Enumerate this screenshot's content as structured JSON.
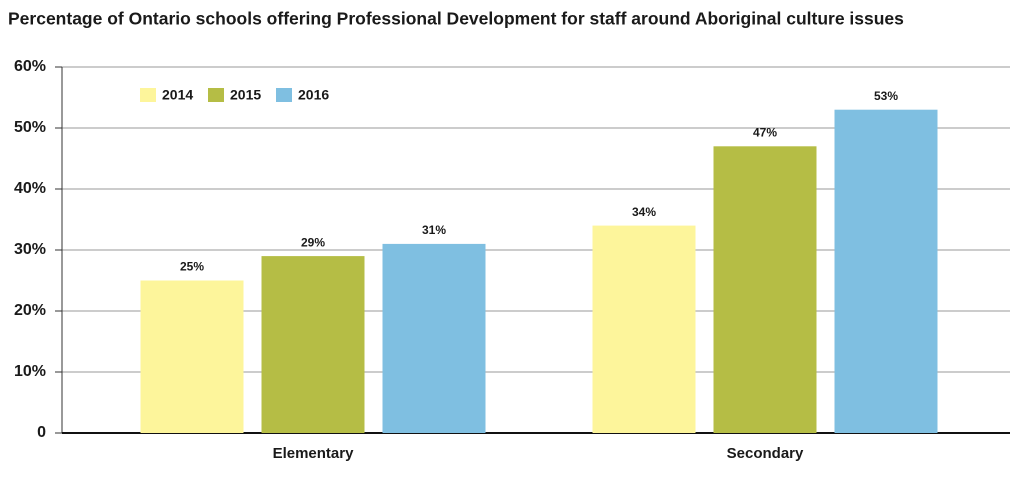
{
  "chart_data": {
    "type": "bar",
    "title": "Percentage of Ontario schools offering Professional Development for staff around Aboriginal culture issues",
    "categories": [
      "Elementary",
      "Secondary"
    ],
    "series": [
      {
        "name": "2014",
        "color": "#fdf59b",
        "values": [
          25,
          34
        ],
        "value_labels": [
          "25%",
          "34%"
        ]
      },
      {
        "name": "2015",
        "color": "#b5bd45",
        "values": [
          29,
          47
        ],
        "value_labels": [
          "29%",
          "47%"
        ]
      },
      {
        "name": "2016",
        "color": "#7fbfe1",
        "values": [
          31,
          53
        ],
        "value_labels": [
          "31%",
          "53%"
        ]
      }
    ],
    "ylim": [
      0,
      60
    ],
    "yticks": [
      0,
      {
        "value": 10,
        "label": "10%"
      },
      {
        "value": 20,
        "label": "20%"
      },
      {
        "value": 30,
        "label": "30%"
      },
      {
        "value": 40,
        "label": "40%"
      },
      {
        "value": 50,
        "label": "50%"
      },
      {
        "value": 60,
        "label": "60%"
      }
    ],
    "grid": true,
    "legend": "top-left"
  }
}
